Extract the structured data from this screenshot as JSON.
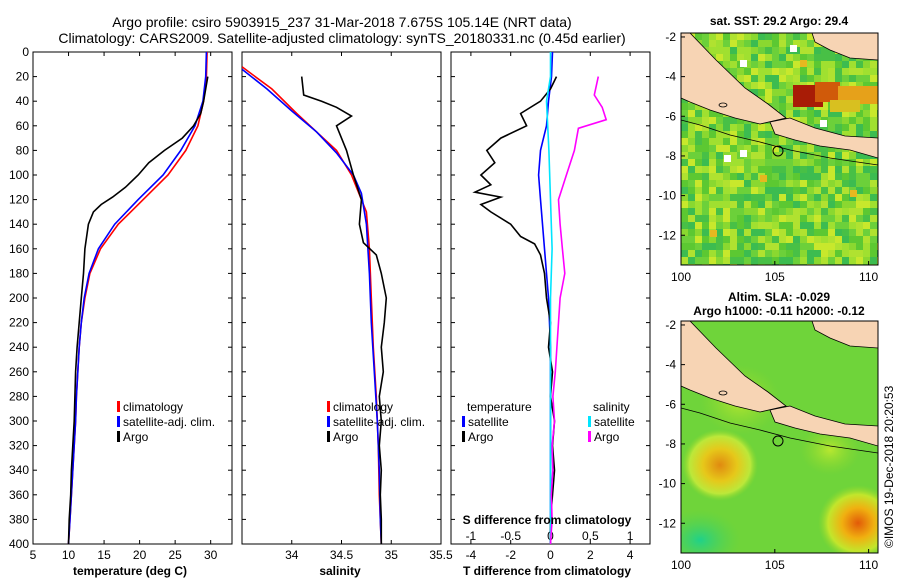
{
  "title": {
    "line1": "Argo profile: csiro 5903915_237 31-Mar-2018 7.675S 105.14E (NRT data)",
    "line2": "Climatology: CARS2009. Satellite-adjusted climatology: synTS_20180331.nc (0.45d earlier)"
  },
  "watermark": "©IMOS 19-Dec-2018 20:20:53",
  "colors": {
    "climatology": "#ff0000",
    "satellite": "#0000ff",
    "argo": "#000000",
    "sat_salinity": "#00e5ff",
    "argo_salinity": "#ff00ff"
  },
  "depth_axis": {
    "ylim": [
      0,
      400
    ],
    "ticks": [
      0,
      20,
      40,
      60,
      80,
      100,
      120,
      140,
      160,
      180,
      200,
      220,
      240,
      260,
      280,
      300,
      320,
      340,
      360,
      380,
      400
    ]
  },
  "chart_data": [
    {
      "type": "line",
      "name": "temperature",
      "xlabel": "temperature (deg C)",
      "xlim": [
        5,
        33
      ],
      "xticks": [
        5,
        10,
        15,
        20,
        25,
        30
      ],
      "legend": [
        "climatology",
        "satellite-adj. clim.",
        "Argo"
      ],
      "series": [
        {
          "name": "climatology",
          "color": "#ff0000",
          "points": [
            [
              29.5,
              0
            ],
            [
              29.4,
              20
            ],
            [
              29.0,
              40
            ],
            [
              28.2,
              60
            ],
            [
              26.5,
              80
            ],
            [
              24.0,
              100
            ],
            [
              20.5,
              120
            ],
            [
              17.0,
              140
            ],
            [
              14.5,
              160
            ],
            [
              13.0,
              180
            ],
            [
              12.3,
              200
            ],
            [
              11.8,
              220
            ],
            [
              11.5,
              240
            ],
            [
              11.3,
              260
            ],
            [
              11.1,
              280
            ],
            [
              11.0,
              300
            ],
            [
              10.8,
              320
            ],
            [
              10.6,
              340
            ],
            [
              10.4,
              360
            ],
            [
              10.2,
              380
            ],
            [
              10.0,
              400
            ]
          ]
        },
        {
          "name": "satellite-adj. clim.",
          "color": "#0000ff",
          "points": [
            [
              29.4,
              0
            ],
            [
              29.3,
              20
            ],
            [
              28.9,
              40
            ],
            [
              27.8,
              60
            ],
            [
              25.8,
              80
            ],
            [
              23.3,
              100
            ],
            [
              19.8,
              120
            ],
            [
              16.5,
              140
            ],
            [
              14.2,
              160
            ],
            [
              12.9,
              180
            ],
            [
              12.2,
              200
            ],
            [
              11.8,
              220
            ],
            [
              11.5,
              240
            ],
            [
              11.3,
              260
            ],
            [
              11.1,
              280
            ],
            [
              11.0,
              300
            ],
            [
              10.8,
              320
            ],
            [
              10.6,
              340
            ],
            [
              10.4,
              360
            ],
            [
              10.2,
              380
            ],
            [
              10.0,
              400
            ]
          ]
        },
        {
          "name": "Argo",
          "color": "#000000",
          "points": [
            [
              29.6,
              20
            ],
            [
              29.3,
              30
            ],
            [
              29.0,
              40
            ],
            [
              28.6,
              50
            ],
            [
              27.6,
              60
            ],
            [
              26.0,
              70
            ],
            [
              23.5,
              80
            ],
            [
              21.3,
              90
            ],
            [
              19.8,
              100
            ],
            [
              18.0,
              110
            ],
            [
              16.2,
              118
            ],
            [
              14.6,
              124
            ],
            [
              13.5,
              130
            ],
            [
              12.8,
              140
            ],
            [
              12.3,
              160
            ],
            [
              12.1,
              180
            ],
            [
              11.8,
              200
            ],
            [
              11.5,
              220
            ],
            [
              11.2,
              240
            ],
            [
              11.0,
              260
            ],
            [
              10.9,
              280
            ],
            [
              10.8,
              300
            ],
            [
              10.6,
              320
            ],
            [
              10.4,
              340
            ],
            [
              10.3,
              360
            ],
            [
              10.1,
              380
            ],
            [
              10.0,
              400
            ]
          ]
        }
      ]
    },
    {
      "type": "line",
      "name": "salinity",
      "xlabel": "salinity",
      "xlim": [
        33.5,
        35.5
      ],
      "xticks": [
        34,
        34.5,
        35,
        35.5
      ],
      "legend": [
        "climatology",
        "satellite-adj. clim.",
        "Argo"
      ],
      "series": [
        {
          "name": "climatology",
          "color": "#ff0000",
          "points": [
            [
              33.5,
              12
            ],
            [
              33.8,
              30
            ],
            [
              34.05,
              50
            ],
            [
              34.25,
              65
            ],
            [
              34.45,
              80
            ],
            [
              34.6,
              100
            ],
            [
              34.75,
              130
            ],
            [
              34.78,
              160
            ],
            [
              34.8,
              200
            ],
            [
              34.82,
              240
            ],
            [
              34.85,
              280
            ],
            [
              34.87,
              320
            ],
            [
              34.88,
              360
            ],
            [
              34.9,
              400
            ]
          ]
        },
        {
          "name": "satellite-adj. clim.",
          "color": "#0000ff",
          "points": [
            [
              33.5,
              14
            ],
            [
              33.75,
              30
            ],
            [
              34.0,
              48
            ],
            [
              34.25,
              65
            ],
            [
              34.45,
              82
            ],
            [
              34.62,
              100
            ],
            [
              34.7,
              115
            ],
            [
              34.75,
              140
            ],
            [
              34.78,
              180
            ],
            [
              34.8,
              220
            ],
            [
              34.83,
              260
            ],
            [
              34.86,
              300
            ],
            [
              34.88,
              340
            ],
            [
              34.89,
              380
            ],
            [
              34.9,
              400
            ]
          ]
        },
        {
          "name": "Argo",
          "color": "#000000",
          "points": [
            [
              34.1,
              20
            ],
            [
              34.12,
              35
            ],
            [
              34.3,
              40
            ],
            [
              34.45,
              45
            ],
            [
              34.6,
              52
            ],
            [
              34.45,
              60
            ],
            [
              34.55,
              80
            ],
            [
              34.62,
              100
            ],
            [
              34.7,
              120
            ],
            [
              34.68,
              140
            ],
            [
              34.72,
              155
            ],
            [
              34.85,
              165
            ],
            [
              34.9,
              180
            ],
            [
              34.95,
              200
            ],
            [
              34.93,
              220
            ],
            [
              34.9,
              240
            ],
            [
              34.92,
              260
            ],
            [
              34.88,
              280
            ],
            [
              34.9,
              300
            ],
            [
              34.88,
              320
            ],
            [
              34.9,
              340
            ],
            [
              34.89,
              360
            ],
            [
              34.9,
              380
            ],
            [
              34.9,
              400
            ]
          ]
        }
      ]
    },
    {
      "type": "line",
      "name": "difference",
      "xlabel": "T difference from climatology",
      "xlabel_top": "S difference from climatology",
      "xlim": [
        -5,
        5
      ],
      "xticks": [
        -4,
        -2,
        0,
        2,
        4
      ],
      "xticks_s": [
        -1,
        -0.5,
        0,
        0.5,
        1
      ],
      "legend_t": [
        "temperature",
        "satellite",
        "Argo"
      ],
      "legend_s": [
        "salinity",
        "satellite",
        "Argo"
      ],
      "series": [
        {
          "name": "T satellite",
          "color": "#0000ff",
          "points": [
            [
              0.1,
              0
            ],
            [
              0.05,
              20
            ],
            [
              -0.1,
              40
            ],
            [
              -0.2,
              60
            ],
            [
              -0.5,
              80
            ],
            [
              -0.6,
              100
            ],
            [
              -0.5,
              120
            ],
            [
              -0.4,
              140
            ],
            [
              -0.3,
              160
            ],
            [
              -0.2,
              180
            ],
            [
              -0.1,
              200
            ],
            [
              0,
              240
            ],
            [
              0,
              300
            ],
            [
              0,
              400
            ]
          ]
        },
        {
          "name": "T Argo",
          "color": "#000000",
          "points": [
            [
              0.3,
              20
            ],
            [
              0,
              30
            ],
            [
              -0.5,
              40
            ],
            [
              -1.5,
              50
            ],
            [
              -1.2,
              60
            ],
            [
              -2.5,
              70
            ],
            [
              -3.2,
              80
            ],
            [
              -2.8,
              90
            ],
            [
              -3.5,
              100
            ],
            [
              -3.0,
              108
            ],
            [
              -3.8,
              114
            ],
            [
              -2.5,
              118
            ],
            [
              -3.5,
              124
            ],
            [
              -3.0,
              130
            ],
            [
              -2.0,
              140
            ],
            [
              -1.5,
              150
            ],
            [
              -0.8,
              156
            ],
            [
              -0.5,
              165
            ],
            [
              -0.3,
              180
            ],
            [
              -0.2,
              200
            ],
            [
              0,
              220
            ],
            [
              -0.1,
              240
            ],
            [
              0.1,
              260
            ],
            [
              0,
              280
            ],
            [
              0.2,
              300
            ],
            [
              0.1,
              320
            ],
            [
              0.2,
              340
            ],
            [
              0.1,
              360
            ],
            [
              0,
              380
            ],
            [
              0,
              400
            ]
          ]
        },
        {
          "name": "S satellite",
          "color": "#00e5ff",
          "points": [
            [
              0,
              0
            ],
            [
              0,
              20
            ],
            [
              -0.05,
              40
            ],
            [
              -0.02,
              80
            ],
            [
              0,
              120
            ],
            [
              0.02,
              160
            ],
            [
              0,
              200
            ],
            [
              0,
              260
            ],
            [
              0,
              320
            ],
            [
              0,
              400
            ]
          ]
        },
        {
          "name": "S Argo",
          "color": "#ff00ff",
          "points": [
            [
              0.6,
              20
            ],
            [
              0.55,
              35
            ],
            [
              0.65,
              45
            ],
            [
              0.7,
              55
            ],
            [
              0.35,
              62
            ],
            [
              0.3,
              80
            ],
            [
              0.2,
              100
            ],
            [
              0.1,
              120
            ],
            [
              0.12,
              140
            ],
            [
              0.15,
              160
            ],
            [
              0.18,
              180
            ],
            [
              0.12,
              200
            ],
            [
              0.1,
              220
            ],
            [
              0.08,
              240
            ],
            [
              0.06,
              260
            ],
            [
              0.03,
              280
            ],
            [
              0.05,
              300
            ],
            [
              0.02,
              320
            ],
            [
              0.03,
              340
            ],
            [
              0.01,
              360
            ],
            [
              0.02,
              380
            ],
            [
              0,
              400
            ]
          ]
        }
      ]
    }
  ],
  "maps": {
    "sst": {
      "title": "sat. SST: 29.2 Argo: 29.4",
      "xticks": [
        100,
        105,
        110
      ],
      "yticks": [
        -2,
        -4,
        -6,
        -8,
        -10,
        -12
      ],
      "xlim": [
        100,
        110.5
      ],
      "ylim": [
        -13.5,
        -1.8
      ],
      "argo_position": [
        105.14,
        -7.675
      ]
    },
    "sla": {
      "title1": "Altim. SLA: -0.029",
      "title2": "Argo h1000: -0.11 h2000: -0.12",
      "xticks": [
        100,
        105,
        110
      ],
      "yticks": [
        -2,
        -4,
        -6,
        -8,
        -10,
        -12
      ],
      "xlim": [
        100,
        110.5
      ],
      "ylim": [
        -13.5,
        -1.8
      ],
      "argo_position": [
        105.14,
        -7.675
      ]
    }
  }
}
